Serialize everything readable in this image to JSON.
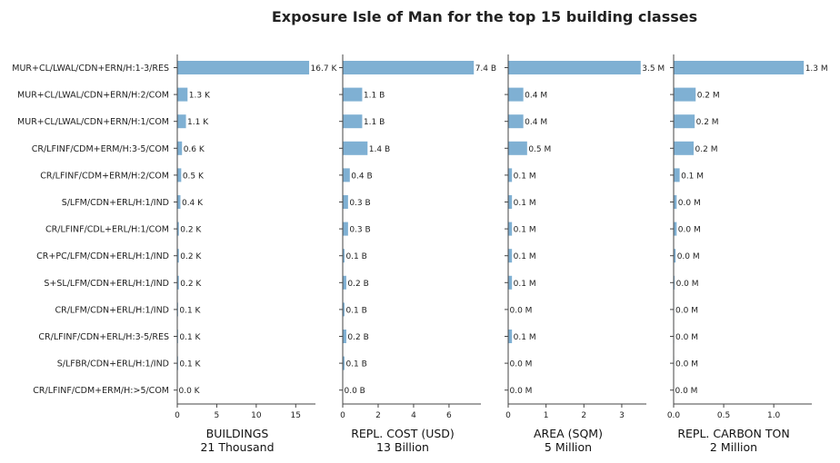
{
  "title": "Exposure Isle of Man for the top 15 building classes",
  "colors": {
    "bar": "#7fb0d3",
    "axis": "#444444",
    "text": "#222222"
  },
  "chart_data": {
    "type": "bar",
    "orientation": "horizontal",
    "grid": false,
    "categories": [
      "MUR+CL/LWAL/CDN+ERN/H:1-3/RES",
      "MUR+CL/LWAL/CDN+ERN/H:2/COM",
      "MUR+CL/LWAL/CDN+ERN/H:1/COM",
      "CR/LFINF/CDM+ERM/H:3-5/COM",
      "CR/LFINF/CDM+ERM/H:2/COM",
      "S/LFM/CDN+ERL/H:1/IND",
      "CR/LFINF/CDL+ERL/H:1/COM",
      "CR+PC/LFM/CDN+ERL/H:1/IND",
      "S+SL/LFM/CDN+ERL/H:1/IND",
      "CR/LFM/CDN+ERL/H:1/IND",
      "CR/LFINF/CDN+ERL/H:3-5/RES",
      "S/LFBR/CDN+ERL/H:1/IND",
      "CR/LFINF/CDM+ERM/H:>5/COM"
    ],
    "panels": [
      {
        "xlabel": "BUILDINGS",
        "subtitle": "21 Thousand",
        "xlim": [
          0,
          17.5
        ],
        "xticks": [
          0,
          5,
          10,
          15
        ],
        "xtick_labels": [
          "0",
          "5",
          "10",
          "15"
        ],
        "values": [
          16.7,
          1.3,
          1.1,
          0.6,
          0.5,
          0.4,
          0.2,
          0.2,
          0.2,
          0.1,
          0.1,
          0.1,
          0.0
        ],
        "labels": [
          "16.7 K",
          "1.3 K",
          "1.1 K",
          "0.6 K",
          "0.5 K",
          "0.4 K",
          "0.2 K",
          "0.2 K",
          "0.2 K",
          "0.1 K",
          "0.1 K",
          "0.1 K",
          "0.0 K"
        ]
      },
      {
        "xlabel": "REPL. COST (USD)",
        "subtitle": "13 Billion",
        "xlim": [
          0,
          7.8
        ],
        "xticks": [
          0,
          2,
          4,
          6
        ],
        "xtick_labels": [
          "0",
          "2",
          "4",
          "6"
        ],
        "values": [
          7.4,
          1.1,
          1.1,
          1.4,
          0.4,
          0.3,
          0.3,
          0.1,
          0.2,
          0.1,
          0.2,
          0.1,
          0.0
        ],
        "labels": [
          "7.4 B",
          "1.1 B",
          "1.1 B",
          "1.4 B",
          "0.4 B",
          "0.3 B",
          "0.3 B",
          "0.1 B",
          "0.2 B",
          "0.1 B",
          "0.2 B",
          "0.1 B",
          "0.0 B"
        ]
      },
      {
        "xlabel": "AREA (SQM)",
        "subtitle": "5 Million",
        "xlim": [
          0,
          3.65
        ],
        "xticks": [
          0,
          1,
          2,
          3
        ],
        "xtick_labels": [
          "0",
          "1",
          "2",
          "3"
        ],
        "values": [
          3.5,
          0.4,
          0.4,
          0.5,
          0.1,
          0.1,
          0.1,
          0.1,
          0.1,
          0.0,
          0.1,
          0.0,
          0.0
        ],
        "labels": [
          "3.5 M",
          "0.4 M",
          "0.4 M",
          "0.5 M",
          "0.1 M",
          "0.1 M",
          "0.1 M",
          "0.1 M",
          "0.1 M",
          "0.0 M",
          "0.1 M",
          "0.0 M",
          "0.0 M"
        ]
      },
      {
        "xlabel": "REPL. CARBON TON",
        "subtitle": "2 Million",
        "xlim": [
          0,
          1.38
        ],
        "xticks": [
          0,
          0.5,
          1
        ],
        "xtick_labels": [
          "0.0",
          "0.5",
          "1.0"
        ],
        "values": [
          1.3,
          0.22,
          0.21,
          0.2,
          0.06,
          0.03,
          0.03,
          0.02,
          0.01,
          0.005,
          0.005,
          0.005,
          0.0
        ],
        "labels": [
          "1.3 M",
          "0.2 M",
          "0.2 M",
          "0.2 M",
          "0.1 M",
          "0.0 M",
          "0.0 M",
          "0.0 M",
          "0.0 M",
          "0.0 M",
          "0.0 M",
          "0.0 M",
          "0.0 M"
        ]
      }
    ]
  }
}
